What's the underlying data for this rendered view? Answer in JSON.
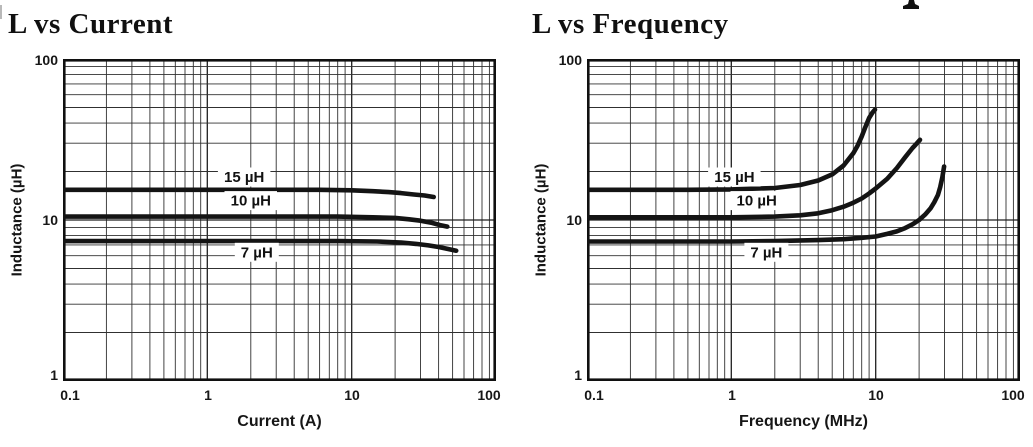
{
  "chart_data": [
    {
      "type": "line",
      "title": "L vs Current",
      "xlabel": "Current (A)",
      "ylabel": "Inductance (µH)",
      "xscale": "log",
      "yscale": "log",
      "xlim": [
        0.1,
        100
      ],
      "ylim": [
        1,
        100
      ],
      "grid": "full log grid with minor decade lines, black on white",
      "legend_position": "labels inline above/below curves",
      "x_tick_labels": [
        "0.1",
        "1",
        "10",
        "100"
      ],
      "y_tick_labels": [
        "100",
        "10",
        "1"
      ],
      "line_color": "#141414",
      "series": [
        {
          "name": "15 µH",
          "label_xy": [
            1.8,
            18.5
          ],
          "points": [
            [
              0.1,
              15.4
            ],
            [
              0.3,
              15.4
            ],
            [
              1,
              15.4
            ],
            [
              3,
              15.4
            ],
            [
              6,
              15.4
            ],
            [
              10,
              15.3
            ],
            [
              14,
              15.1
            ],
            [
              18,
              14.9
            ],
            [
              22,
              14.7
            ],
            [
              27,
              14.4
            ],
            [
              32,
              14.2
            ],
            [
              37,
              13.9
            ]
          ]
        },
        {
          "name": "10 µH",
          "label_xy": [
            2.0,
            13.2
          ],
          "points": [
            [
              0.1,
              10.5
            ],
            [
              0.3,
              10.5
            ],
            [
              1,
              10.5
            ],
            [
              3,
              10.5
            ],
            [
              8,
              10.5
            ],
            [
              14,
              10.4
            ],
            [
              20,
              10.3
            ],
            [
              25,
              10.1
            ],
            [
              30,
              9.9
            ],
            [
              36,
              9.6
            ],
            [
              41,
              9.3
            ],
            [
              46,
              9.1
            ]
          ]
        },
        {
          "name": "7 µH",
          "label_xy": [
            2.2,
            6.3
          ],
          "points": [
            [
              0.1,
              7.4
            ],
            [
              0.3,
              7.4
            ],
            [
              1,
              7.4
            ],
            [
              3,
              7.4
            ],
            [
              8,
              7.4
            ],
            [
              15,
              7.35
            ],
            [
              22,
              7.25
            ],
            [
              28,
              7.1
            ],
            [
              34,
              6.95
            ],
            [
              40,
              6.8
            ],
            [
              47,
              6.6
            ],
            [
              53,
              6.45
            ]
          ]
        }
      ]
    },
    {
      "type": "line",
      "title": "L vs Frequency",
      "xlabel": "Frequency (MHz)",
      "ylabel": "Inductance (µH)",
      "xscale": "log",
      "yscale": "log",
      "xlim": [
        0.1,
        100
      ],
      "ylim": [
        1,
        100
      ],
      "grid": "full log grid with minor decade lines, black on white",
      "legend_position": "labels inline above/below curves",
      "x_tick_labels": [
        "0.1",
        "1",
        "10",
        "100"
      ],
      "y_tick_labels": [
        "100",
        "10",
        "1"
      ],
      "line_color": "#141414",
      "series": [
        {
          "name": "15 µH",
          "label_xy": [
            1.05,
            18.5
          ],
          "points": [
            [
              0.1,
              15.4
            ],
            [
              0.5,
              15.4
            ],
            [
              1,
              15.5
            ],
            [
              2,
              15.8
            ],
            [
              3,
              16.5
            ],
            [
              4,
              17.6
            ],
            [
              5,
              19.2
            ],
            [
              6,
              21.8
            ],
            [
              7,
              26
            ],
            [
              7.5,
              29
            ],
            [
              8,
              33
            ],
            [
              8.5,
              38
            ],
            [
              9,
              43
            ],
            [
              9.5,
              46.5
            ],
            [
              9.9,
              48.5
            ]
          ]
        },
        {
          "name": "10 µH",
          "label_xy": [
            1.5,
            13.2
          ],
          "points": [
            [
              0.1,
              10.4
            ],
            [
              1,
              10.4
            ],
            [
              2,
              10.5
            ],
            [
              3,
              10.7
            ],
            [
              4,
              11
            ],
            [
              5,
              11.5
            ],
            [
              6,
              12.1
            ],
            [
              7,
              12.8
            ],
            [
              8,
              13.6
            ],
            [
              9,
              14.6
            ],
            [
              10,
              15.7
            ],
            [
              12,
              18
            ],
            [
              14,
              21
            ],
            [
              16,
              24.5
            ],
            [
              18,
              28
            ],
            [
              19,
              29.5
            ],
            [
              20.3,
              31.5
            ]
          ]
        },
        {
          "name": "7 µH",
          "label_xy": [
            1.75,
            6.3
          ],
          "points": [
            [
              0.1,
              7.35
            ],
            [
              1,
              7.35
            ],
            [
              2,
              7.4
            ],
            [
              4,
              7.5
            ],
            [
              6,
              7.6
            ],
            [
              8,
              7.75
            ],
            [
              10,
              7.9
            ],
            [
              12,
              8.2
            ],
            [
              14,
              8.5
            ],
            [
              16,
              8.9
            ],
            [
              18,
              9.4
            ],
            [
              20,
              10
            ],
            [
              22,
              10.8
            ],
            [
              24,
              11.8
            ],
            [
              25.5,
              12.9
            ],
            [
              27,
              14.3
            ],
            [
              28,
              16
            ],
            [
              29,
              18.5
            ],
            [
              29.8,
              21.5
            ]
          ]
        }
      ]
    }
  ]
}
